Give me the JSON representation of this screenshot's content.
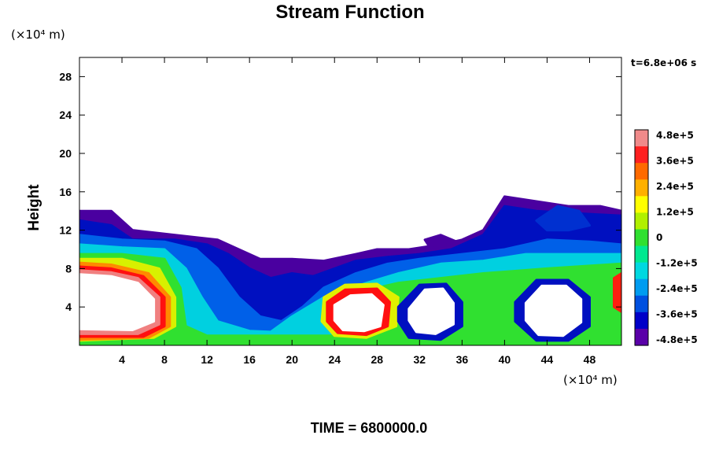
{
  "chart_data": {
    "type": "heatmap",
    "title": "Stream Function",
    "ylabel": "Height",
    "xlabel": "",
    "x_unit": "(×10⁴ m)",
    "y_unit": "(×10⁴ m)",
    "time_stamp": "t=6.8e+06 s",
    "footer": "TIME = 6800000.0",
    "xlim": [
      0,
      51
    ],
    "ylim": [
      0,
      30
    ],
    "x_ticks": [
      4,
      8,
      12,
      16,
      20,
      24,
      28,
      32,
      36,
      40,
      44,
      48
    ],
    "y_ticks": [
      4,
      8,
      12,
      16,
      20,
      24,
      28
    ],
    "colorbar": {
      "labels": [
        "4.8e+5",
        "3.6e+5",
        "2.4e+5",
        "1.2e+5",
        "0",
        "-1.2e+5",
        "-2.4e+5",
        "-3.6e+5",
        "-4.8e+5"
      ],
      "colors": [
        "#f08a8a",
        "#ff2020",
        "#ff6a00",
        "#ffb000",
        "#ffff00",
        "#b0f000",
        "#30e030",
        "#00e890",
        "#00d8e0",
        "#009cf0",
        "#0050e0",
        "#0000c8",
        "#5a00a8"
      ]
    },
    "regions": [
      {
        "name": "upper-boundary",
        "color": "#4a00a0",
        "pts": [
          [
            0,
            14
          ],
          [
            3,
            14
          ],
          [
            5,
            12
          ],
          [
            9,
            11.5
          ],
          [
            13,
            11
          ],
          [
            15,
            10
          ],
          [
            17,
            9
          ],
          [
            20,
            9
          ],
          [
            23,
            8.8
          ],
          [
            26,
            9.5
          ],
          [
            28,
            10
          ],
          [
            31,
            10
          ],
          [
            34,
            10.5
          ],
          [
            36,
            11
          ],
          [
            38,
            12
          ],
          [
            40,
            15.5
          ],
          [
            43,
            15
          ],
          [
            46,
            14.5
          ],
          [
            49,
            14.5
          ],
          [
            51,
            14
          ],
          [
            51,
            0
          ],
          [
            0,
            0
          ]
        ]
      },
      {
        "name": "dark-blue-band",
        "color": "#0010c0",
        "pts": [
          [
            0,
            13
          ],
          [
            3,
            12.5
          ],
          [
            5,
            11
          ],
          [
            9,
            11
          ],
          [
            12,
            10.5
          ],
          [
            14,
            9.5
          ],
          [
            16,
            8
          ],
          [
            18,
            7
          ],
          [
            20,
            7.5
          ],
          [
            22,
            7.2
          ],
          [
            24,
            8
          ],
          [
            26,
            8.8
          ],
          [
            29,
            9.2
          ],
          [
            32,
            9.5
          ],
          [
            35,
            10
          ],
          [
            38,
            11.5
          ],
          [
            40,
            14.5
          ],
          [
            43,
            14
          ],
          [
            46,
            13.8
          ],
          [
            51,
            13.5
          ],
          [
            51,
            0
          ],
          [
            0,
            0
          ]
        ]
      },
      {
        "name": "blue-band",
        "color": "#0060e8",
        "pts": [
          [
            0,
            11.5
          ],
          [
            4,
            11
          ],
          [
            8,
            10.8
          ],
          [
            11,
            10
          ],
          [
            13,
            8
          ],
          [
            15,
            5
          ],
          [
            17,
            3
          ],
          [
            19,
            2.5
          ],
          [
            21,
            4
          ],
          [
            23,
            6
          ],
          [
            26,
            7.5
          ],
          [
            29,
            8.5
          ],
          [
            32,
            9
          ],
          [
            36,
            9.5
          ],
          [
            40,
            10
          ],
          [
            44,
            11
          ],
          [
            48,
            10.8
          ],
          [
            51,
            10.5
          ],
          [
            51,
            0
          ],
          [
            0,
            0
          ]
        ]
      },
      {
        "name": "cyan-band",
        "color": "#00d0e0",
        "pts": [
          [
            0,
            10.5
          ],
          [
            4,
            10.2
          ],
          [
            8,
            10
          ],
          [
            10,
            8
          ],
          [
            11.5,
            5
          ],
          [
            13,
            2.5
          ],
          [
            16,
            1.5
          ],
          [
            18,
            1.4
          ],
          [
            20,
            3
          ],
          [
            23,
            5
          ],
          [
            27,
            6.5
          ],
          [
            30,
            7.5
          ],
          [
            34,
            8.5
          ],
          [
            38,
            8.8
          ],
          [
            42,
            9.5
          ],
          [
            46,
            9.5
          ],
          [
            51,
            9.5
          ],
          [
            51,
            0
          ],
          [
            0,
            0
          ]
        ]
      },
      {
        "name": "green-field",
        "color": "#30e030",
        "pts": [
          [
            0,
            9.5
          ],
          [
            4,
            9.5
          ],
          [
            8,
            9
          ],
          [
            9.5,
            6
          ],
          [
            10,
            2
          ],
          [
            12,
            1
          ],
          [
            24,
            1
          ],
          [
            26,
            5
          ],
          [
            28,
            6
          ],
          [
            30,
            6.5
          ],
          [
            34,
            7
          ],
          [
            38,
            7.5
          ],
          [
            44,
            8
          ],
          [
            51,
            8.5
          ],
          [
            51,
            0
          ],
          [
            0,
            0
          ]
        ]
      },
      {
        "name": "yellow-core-left",
        "color": "#d8f000",
        "pts": [
          [
            0,
            9
          ],
          [
            4,
            9
          ],
          [
            7.5,
            8
          ],
          [
            9,
            5
          ],
          [
            9,
            2
          ],
          [
            7,
            0.8
          ],
          [
            0,
            0.5
          ]
        ]
      },
      {
        "name": "orange-ring-left",
        "color": "#ff8a00",
        "pts": [
          [
            0,
            8.6
          ],
          [
            3,
            8.4
          ],
          [
            6.5,
            7.5
          ],
          [
            8.5,
            5
          ],
          [
            8.5,
            2
          ],
          [
            6.5,
            0.8
          ],
          [
            0,
            0.6
          ]
        ]
      },
      {
        "name": "red-ring-left",
        "color": "#ff1010",
        "pts": [
          [
            0,
            8.2
          ],
          [
            3,
            8
          ],
          [
            6,
            7.2
          ],
          [
            8,
            5
          ],
          [
            8,
            2
          ],
          [
            6,
            0.9
          ],
          [
            0,
            0.9
          ]
        ]
      },
      {
        "name": "pink-ring-left",
        "color": "#f08080",
        "pts": [
          [
            0,
            7.8
          ],
          [
            3,
            7.6
          ],
          [
            5.5,
            7
          ],
          [
            7.5,
            5
          ],
          [
            7.5,
            2.2
          ],
          [
            5.5,
            1.2
          ],
          [
            0,
            1.2
          ]
        ]
      },
      {
        "name": "white-hole-left",
        "color": "#ffffff",
        "pts": [
          [
            0,
            7.4
          ],
          [
            3,
            7.2
          ],
          [
            5.5,
            6.5
          ],
          [
            7,
            4.8
          ],
          [
            7,
            2.5
          ],
          [
            5,
            1.6
          ],
          [
            0,
            1.7
          ]
        ]
      },
      {
        "name": "yellow-core-mid",
        "color": "#e0f000",
        "pts": [
          [
            23,
            5
          ],
          [
            25,
            6.3
          ],
          [
            28,
            6.4
          ],
          [
            30,
            5
          ],
          [
            29.8,
            2
          ],
          [
            27,
            0.8
          ],
          [
            24,
            1
          ],
          [
            22.8,
            2.5
          ]
        ]
      },
      {
        "name": "red-ring-mid",
        "color": "#ff1010",
        "pts": [
          [
            23.3,
            4.5
          ],
          [
            25,
            5.8
          ],
          [
            28,
            5.9
          ],
          [
            29.2,
            4.5
          ],
          [
            29,
            2
          ],
          [
            27,
            1.1
          ],
          [
            24.3,
            1.3
          ],
          [
            23.3,
            2.5
          ]
        ]
      },
      {
        "name": "white-hole-mid",
        "color": "#ffffff",
        "pts": [
          [
            24,
            4.2
          ],
          [
            25.5,
            5.2
          ],
          [
            27.5,
            5.3
          ],
          [
            28.6,
            4.2
          ],
          [
            28.3,
            2
          ],
          [
            26.8,
            1.5
          ],
          [
            24.8,
            1.6
          ],
          [
            24,
            2.6
          ]
        ]
      },
      {
        "name": "blue-ring-right1",
        "color": "#0010c0",
        "pts": [
          [
            30,
            4
          ],
          [
            32,
            6.3
          ],
          [
            34.5,
            6.4
          ],
          [
            36,
            4.5
          ],
          [
            36,
            2
          ],
          [
            34,
            0.6
          ],
          [
            31,
            0.8
          ],
          [
            30,
            2.5
          ]
        ]
      },
      {
        "name": "white-hole-right1",
        "color": "#ffffff",
        "pts": [
          [
            31,
            3.8
          ],
          [
            32.5,
            5.8
          ],
          [
            34.2,
            5.9
          ],
          [
            35.2,
            4.4
          ],
          [
            35.2,
            2.2
          ],
          [
            33.5,
            1.2
          ],
          [
            31.7,
            1.4
          ],
          [
            31,
            2.6
          ]
        ]
      },
      {
        "name": "blue-ring-right2",
        "color": "#0010c0",
        "pts": [
          [
            41,
            4.5
          ],
          [
            43,
            6.8
          ],
          [
            46,
            6.8
          ],
          [
            48,
            5
          ],
          [
            48,
            2
          ],
          [
            46,
            0.5
          ],
          [
            43,
            0.5
          ],
          [
            41,
            2.5
          ]
        ]
      },
      {
        "name": "white-hole-right2",
        "color": "#ffffff",
        "pts": [
          [
            42,
            4.4
          ],
          [
            43.5,
            6.2
          ],
          [
            45.8,
            6.2
          ],
          [
            47.2,
            4.8
          ],
          [
            47.2,
            2.4
          ],
          [
            45.5,
            1
          ],
          [
            43.2,
            1.1
          ],
          [
            42,
            2.6
          ]
        ]
      },
      {
        "name": "right-edge-red",
        "color": "#ff2010",
        "pts": [
          [
            50.3,
            7
          ],
          [
            51,
            7.5
          ],
          [
            51,
            3.5
          ],
          [
            50.3,
            4
          ]
        ]
      },
      {
        "name": "purple-island",
        "color": "#4a00a0",
        "pts": [
          [
            32.5,
            11
          ],
          [
            34,
            11.5
          ],
          [
            35.5,
            10.8
          ],
          [
            34,
            10.3
          ],
          [
            32.8,
            10.5
          ]
        ]
      },
      {
        "name": "blue-blob-top",
        "color": "#0030d0",
        "pts": [
          [
            43,
            13
          ],
          [
            45,
            14.5
          ],
          [
            47,
            14
          ],
          [
            48,
            12.5
          ],
          [
            46,
            12
          ],
          [
            44,
            12
          ]
        ]
      }
    ]
  }
}
